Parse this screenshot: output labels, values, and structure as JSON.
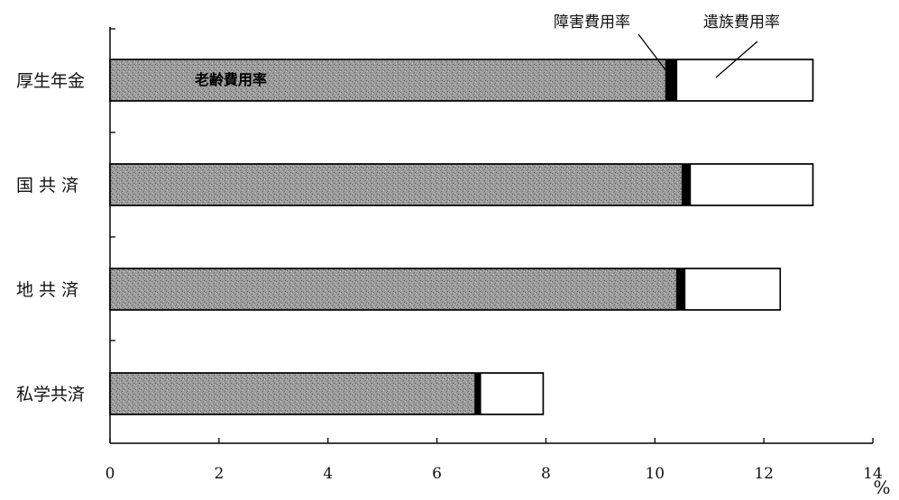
{
  "chart_data": {
    "type": "bar",
    "orientation": "horizontal",
    "stacked": true,
    "categories": [
      "厚生年金",
      "国 共 済",
      "地 共 済",
      "私学共済"
    ],
    "series": [
      {
        "name": "老齢費用率",
        "values": [
          10.2,
          10.5,
          10.4,
          6.7
        ],
        "color": "#9a9a9a"
      },
      {
        "name": "障害費用率",
        "values": [
          0.2,
          0.15,
          0.15,
          0.1
        ],
        "color": "#000000"
      },
      {
        "name": "遺族費用率",
        "values": [
          2.5,
          2.25,
          1.75,
          1.15
        ],
        "color": "#ffffff"
      }
    ],
    "xlim": [
      0,
      14
    ],
    "xticks": [
      "0",
      "2",
      "4",
      "6",
      "8",
      "10",
      "12",
      "14"
    ],
    "unit": "%",
    "grid": false,
    "annotations": {
      "old_age_label": "老齢費用率",
      "disability_label": "障害費用率",
      "survivor_label": "遺族費用率"
    }
  }
}
